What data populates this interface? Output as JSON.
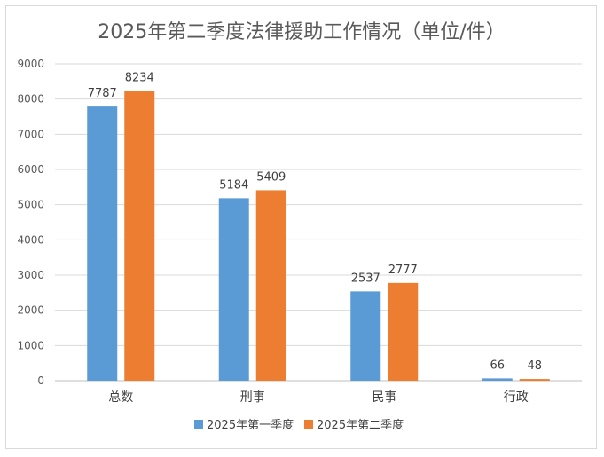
{
  "chart_data": {
    "type": "bar",
    "title": "2025年第二季度法律援助工作情况（单位/件）",
    "categories": [
      "总数",
      "刑事",
      "民事",
      "行政"
    ],
    "series": [
      {
        "name": "2025年第一季度",
        "color": "#5B9BD5",
        "values": [
          7787,
          5184,
          2537,
          66
        ]
      },
      {
        "name": "2025年第二季度",
        "color": "#ED7D31",
        "values": [
          8234,
          5409,
          2777,
          48
        ]
      }
    ],
    "ylim": [
      0,
      9000
    ],
    "yticks": [
      0,
      1000,
      2000,
      3000,
      4000,
      5000,
      6000,
      7000,
      8000,
      9000
    ],
    "grid": true,
    "legend_position": "bottom",
    "data_labels": true
  }
}
